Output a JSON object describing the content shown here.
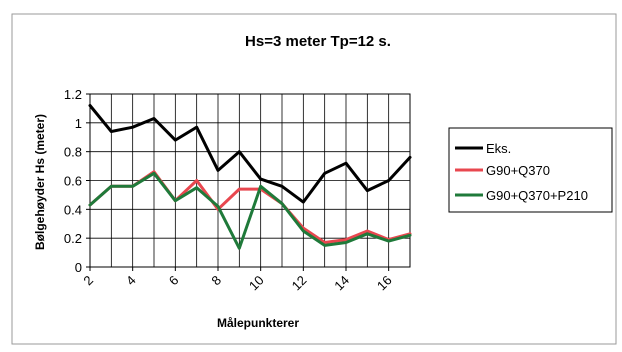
{
  "chart_data": {
    "type": "line",
    "title": "Hs=3 meter Tp=12 s.",
    "xlabel": "Målepunkterer",
    "ylabel": "Bølgehøyder Hs (meter)",
    "x": [
      2,
      3,
      4,
      5,
      6,
      7,
      8,
      9,
      10,
      11,
      12,
      13,
      14,
      15,
      16,
      17
    ],
    "xticks": [
      "2",
      "4",
      "6",
      "8",
      "10",
      "12",
      "14",
      "16"
    ],
    "yticks": [
      "0",
      "0.2",
      "0.4",
      "0.6",
      "0.8",
      "1",
      "1.2"
    ],
    "ylim": [
      0,
      1.2
    ],
    "grid": true,
    "legend_position": "right",
    "series": [
      {
        "name": "Eks.",
        "color": "#000000",
        "values": [
          1.12,
          0.94,
          0.97,
          1.03,
          0.88,
          0.97,
          0.67,
          0.8,
          0.61,
          0.56,
          0.45,
          0.65,
          0.72,
          0.53,
          0.6,
          0.76
        ]
      },
      {
        "name": "G90+Q370",
        "color": "#e8474f",
        "values": [
          0.43,
          0.56,
          0.56,
          0.66,
          0.46,
          0.6,
          0.4,
          0.54,
          0.54,
          0.44,
          0.27,
          0.17,
          0.19,
          0.25,
          0.19,
          0.23
        ]
      },
      {
        "name": "G90+Q370+P210",
        "color": "#1f7a3a",
        "values": [
          0.43,
          0.56,
          0.56,
          0.65,
          0.46,
          0.55,
          0.42,
          0.13,
          0.56,
          0.44,
          0.25,
          0.15,
          0.17,
          0.23,
          0.18,
          0.22
        ]
      }
    ]
  }
}
